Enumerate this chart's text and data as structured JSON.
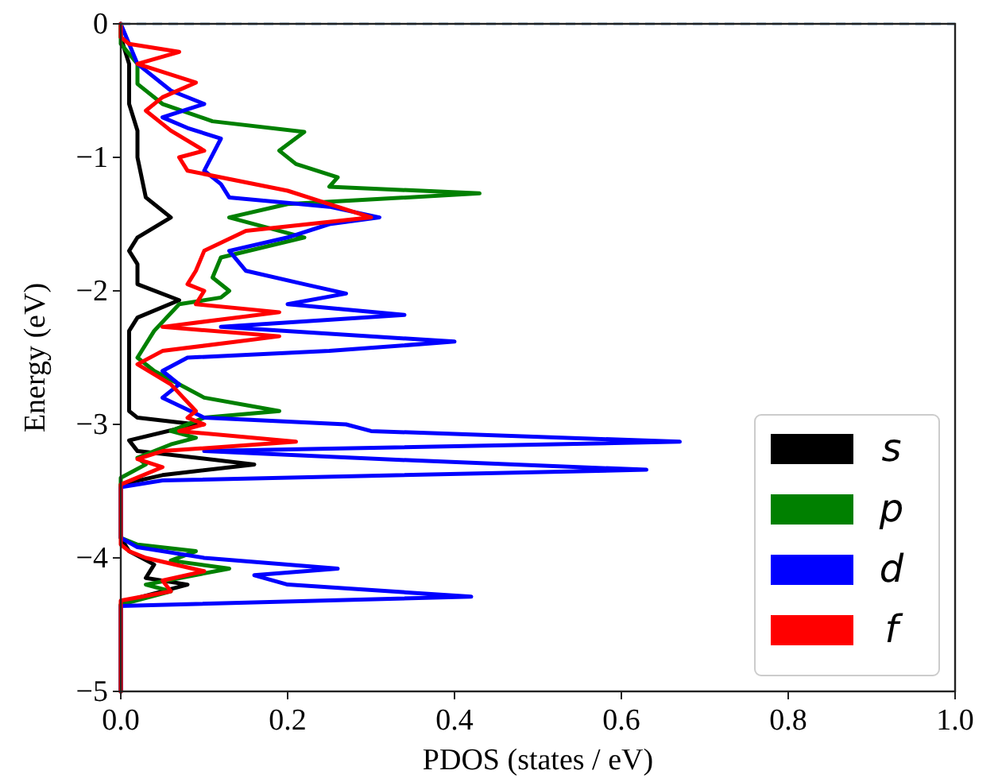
{
  "chart_data": {
    "type": "line",
    "xlabel": "PDOS (states / eV)",
    "ylabel": "Energy (eV)",
    "xlim": [
      0,
      1
    ],
    "ylim": [
      -5,
      0
    ],
    "xticks": [
      {
        "value": 0,
        "label": "0.0"
      },
      {
        "value": 0.2,
        "label": "0.2"
      },
      {
        "value": 0.4,
        "label": "0.4"
      },
      {
        "value": 0.6,
        "label": "0.6"
      },
      {
        "value": 0.8,
        "label": "0.8"
      },
      {
        "value": 1,
        "label": "1.0"
      }
    ],
    "yticks": [
      {
        "value": -5,
        "label": "−5"
      },
      {
        "value": -4,
        "label": "−4"
      },
      {
        "value": -3,
        "label": "−3"
      },
      {
        "value": -2,
        "label": "−2"
      },
      {
        "value": -1,
        "label": "−1"
      },
      {
        "value": 0,
        "label": "0"
      }
    ],
    "grid": false,
    "legend": "bottom right",
    "marker": "none",
    "line_style": "solid",
    "ref_lines": [
      {
        "axis": "y",
        "value": 0,
        "color": "#7fa8c9",
        "line_style": "dashed"
      }
    ],
    "series": [
      {
        "name": "s",
        "color": "#000000",
        "x": [
          0,
          0,
          0.01,
          0.01,
          0.02,
          0.02,
          0.03,
          0.06,
          0.02,
          0.01,
          0.02,
          0.02,
          0.07,
          0.02,
          0.01,
          0.01,
          0.01,
          0.02,
          0.09,
          0.01,
          0.02,
          0.16,
          0.05,
          0,
          0,
          0.01,
          0.04,
          0.03,
          0.08,
          0.02,
          0,
          0
        ],
        "values": [
          0,
          -0.1,
          -0.3,
          -0.6,
          -0.8,
          -1.0,
          -1.3,
          -1.45,
          -1.6,
          -1.7,
          -1.8,
          -1.95,
          -2.07,
          -2.2,
          -2.3,
          -2.6,
          -2.9,
          -2.95,
          -3.0,
          -3.12,
          -3.2,
          -3.3,
          -3.38,
          -3.45,
          -3.85,
          -3.95,
          -4.05,
          -4.15,
          -4.2,
          -4.3,
          -4.35,
          -5
        ]
      },
      {
        "name": "p",
        "color": "#008000",
        "x": [
          0,
          0,
          0.02,
          0.02,
          0.05,
          0.11,
          0.22,
          0.19,
          0.21,
          0.26,
          0.25,
          0.43,
          0.2,
          0.13,
          0.22,
          0.12,
          0.11,
          0.13,
          0.12,
          0.07,
          0.04,
          0.02,
          0.04,
          0.1,
          0.19,
          0.1,
          0.06,
          0.09,
          0.06,
          0.02,
          0.03,
          0,
          0,
          0.02,
          0.09,
          0.06,
          0.13,
          0.03,
          0.06,
          0,
          0
        ],
        "values": [
          0,
          -0.15,
          -0.3,
          -0.45,
          -0.6,
          -0.73,
          -0.81,
          -0.95,
          -1.05,
          -1.15,
          -1.22,
          -1.27,
          -1.35,
          -1.45,
          -1.6,
          -1.75,
          -1.9,
          -2.0,
          -2.05,
          -2.1,
          -2.3,
          -2.5,
          -2.6,
          -2.8,
          -2.9,
          -2.95,
          -3.05,
          -3.1,
          -3.15,
          -3.25,
          -3.3,
          -3.4,
          -3.85,
          -3.9,
          -3.95,
          -4.02,
          -4.08,
          -4.2,
          -4.25,
          -4.35,
          -5
        ]
      },
      {
        "name": "d",
        "color": "#0000ff",
        "x": [
          0,
          0.01,
          0.02,
          0.06,
          0.1,
          0.05,
          0.08,
          0.12,
          0.1,
          0.12,
          0.13,
          0.25,
          0.31,
          0.25,
          0.2,
          0.13,
          0.15,
          0.22,
          0.27,
          0.2,
          0.34,
          0.12,
          0.4,
          0.25,
          0.08,
          0.05,
          0.07,
          0.05,
          0.1,
          0.27,
          0.3,
          0.67,
          0.1,
          0.35,
          0.63,
          0.05,
          0,
          0,
          0.02,
          0.1,
          0.26,
          0.16,
          0.2,
          0.42,
          0,
          0
        ],
        "values": [
          0,
          -0.15,
          -0.3,
          -0.5,
          -0.6,
          -0.7,
          -0.78,
          -0.86,
          -1.1,
          -1.2,
          -1.3,
          -1.37,
          -1.45,
          -1.5,
          -1.6,
          -1.7,
          -1.85,
          -1.95,
          -2.02,
          -2.1,
          -2.18,
          -2.27,
          -2.38,
          -2.45,
          -2.5,
          -2.6,
          -2.7,
          -2.8,
          -2.95,
          -3.0,
          -3.05,
          -3.13,
          -3.2,
          -3.27,
          -3.34,
          -3.42,
          -3.47,
          -3.85,
          -3.92,
          -4.0,
          -4.08,
          -4.13,
          -4.2,
          -4.29,
          -4.36,
          -5
        ]
      },
      {
        "name": "f",
        "color": "#ff0000",
        "x": [
          0,
          0,
          0.01,
          0.07,
          0.02,
          0.09,
          0.05,
          0.03,
          0.06,
          0.1,
          0.07,
          0.08,
          0.2,
          0.25,
          0.3,
          0.15,
          0.1,
          0.09,
          0.08,
          0.1,
          0.09,
          0.19,
          0.05,
          0.19,
          0.05,
          0.02,
          0.06,
          0.09,
          0.08,
          0.1,
          0.07,
          0.21,
          0.05,
          0.02,
          0.05,
          0,
          0,
          0.01,
          0.03,
          0.1,
          0.05,
          0.06,
          0,
          0
        ],
        "values": [
          0,
          -0.1,
          -0.15,
          -0.21,
          -0.3,
          -0.44,
          -0.55,
          -0.65,
          -0.8,
          -0.95,
          -1.0,
          -1.1,
          -1.25,
          -1.35,
          -1.45,
          -1.55,
          -1.7,
          -1.85,
          -1.95,
          -2.0,
          -2.1,
          -2.16,
          -2.27,
          -2.34,
          -2.45,
          -2.55,
          -2.7,
          -2.9,
          -2.95,
          -3.0,
          -3.05,
          -3.13,
          -3.2,
          -3.26,
          -3.32,
          -3.45,
          -3.9,
          -3.95,
          -4.0,
          -4.1,
          -4.17,
          -4.25,
          -4.32,
          -5
        ]
      }
    ]
  }
}
